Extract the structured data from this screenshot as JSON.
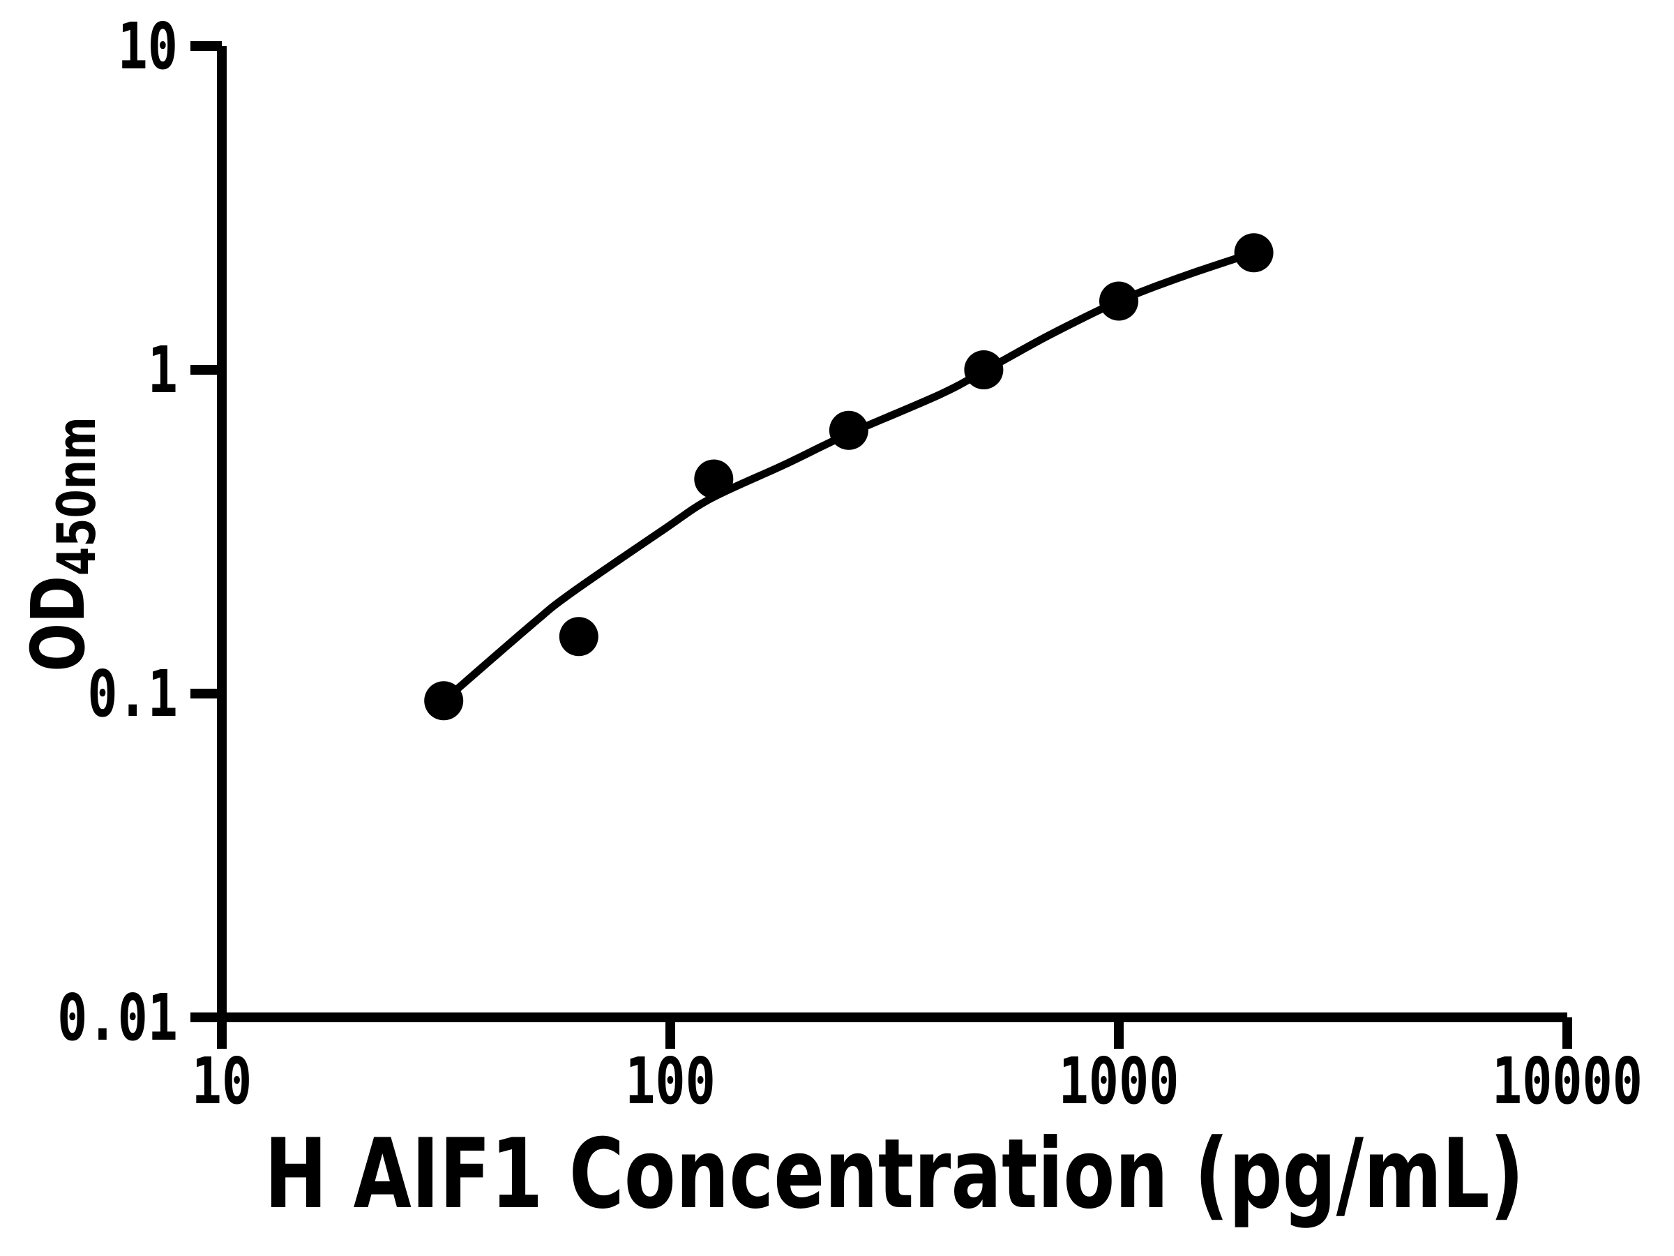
{
  "chart_data": {
    "type": "scatter",
    "title": "",
    "xlabel": "H AIF1 Concentration (pg/mL)",
    "ylabel": "OD450nm",
    "ylabel_main": "OD",
    "ylabel_sub": "450nm",
    "x_scale": "log",
    "y_scale": "log",
    "xlim": [
      10,
      10000
    ],
    "ylim": [
      0.01,
      10
    ],
    "grid": false,
    "legend": "none",
    "x_ticks": {
      "values": [
        10,
        100,
        1000,
        10000
      ],
      "labels": [
        "10",
        "100",
        "1000",
        "10000"
      ]
    },
    "y_ticks": {
      "values": [
        10,
        1,
        0.1,
        0.01
      ],
      "labels": [
        "10",
        "1",
        "0.1",
        "0.01"
      ]
    },
    "series": [
      {
        "name": "standard-curve-points",
        "marker": "filled-circle",
        "x": [
          31.25,
          62.5,
          125,
          250,
          500,
          1000,
          2000
        ],
        "y": [
          0.095,
          0.15,
          0.46,
          0.65,
          1.0,
          1.63,
          2.3
        ]
      }
    ],
    "fit_curve": {
      "name": "4pl-fit-line",
      "points": [
        [
          31.25,
          0.095
        ],
        [
          49,
          0.163
        ],
        [
          60,
          0.204
        ],
        [
          96,
          0.319
        ],
        [
          123,
          0.4
        ],
        [
          180,
          0.51
        ],
        [
          247,
          0.63
        ],
        [
          400,
          0.84
        ],
        [
          500,
          0.99
        ],
        [
          700,
          1.28
        ],
        [
          1000,
          1.63
        ],
        [
          1400,
          1.95
        ],
        [
          2000,
          2.3
        ]
      ]
    },
    "colors": {
      "points": "#000000",
      "curve": "#000000",
      "axis": "#000000",
      "text": "#000000",
      "background": "#ffffff"
    },
    "marker_radius_px": 28
  }
}
